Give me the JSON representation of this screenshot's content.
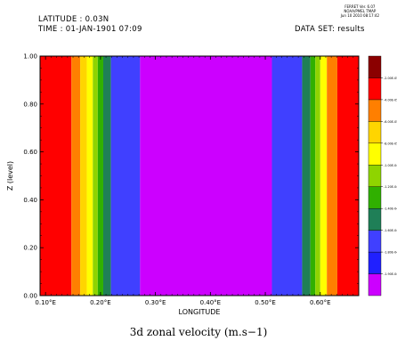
{
  "header": {
    "latitude": "LATITUDE : 0.03N",
    "time": "TIME : 01-JAN-1901 07:09",
    "dataset": "DATA SET: results"
  },
  "ferret": {
    "line1": "FERRET Ver. 6.07",
    "line2": "NOAA/PMEL TMAP",
    "line3": "Jun 10 2010 08:17:42"
  },
  "caption": "3d zonal velocity (m.s−1)",
  "chart_data": {
    "type": "heatmap",
    "xlabel": "LONGITUDE",
    "ylabel": "Z (level)",
    "xlim": [
      0.09,
      0.67
    ],
    "ylim": [
      0.0,
      1.0
    ],
    "x_ticks": [
      0.1,
      0.2,
      0.3,
      0.4,
      0.5,
      0.6
    ],
    "x_tick_labels": [
      "0.10°E",
      "0.20°E",
      "0.30°E",
      "0.40°E",
      "0.50°E",
      "0.60°E"
    ],
    "y_ticks": [
      0.0,
      0.2,
      0.4,
      0.6,
      0.8,
      1.0
    ],
    "y_tick_labels": [
      "0.00",
      "0.20",
      "0.40",
      "0.60",
      "0.80",
      "1.00"
    ],
    "bands": [
      {
        "x0": 0.09,
        "x1": 0.147,
        "color": "#ff0000"
      },
      {
        "x0": 0.147,
        "x1": 0.163,
        "color": "#ff7f00"
      },
      {
        "x0": 0.163,
        "x1": 0.175,
        "color": "#ffd500"
      },
      {
        "x0": 0.175,
        "x1": 0.186,
        "color": "#ffff00"
      },
      {
        "x0": 0.186,
        "x1": 0.195,
        "color": "#8fd400"
      },
      {
        "x0": 0.195,
        "x1": 0.205,
        "color": "#30b000"
      },
      {
        "x0": 0.205,
        "x1": 0.219,
        "color": "#1f7f57"
      },
      {
        "x0": 0.219,
        "x1": 0.272,
        "color": "#4040ff"
      },
      {
        "x0": 0.272,
        "x1": 0.512,
        "color": "#cc00ff"
      },
      {
        "x0": 0.512,
        "x1": 0.567,
        "color": "#4040ff"
      },
      {
        "x0": 0.567,
        "x1": 0.582,
        "color": "#1f7f57"
      },
      {
        "x0": 0.582,
        "x1": 0.591,
        "color": "#30b000"
      },
      {
        "x0": 0.591,
        "x1": 0.6,
        "color": "#8fd400"
      },
      {
        "x0": 0.6,
        "x1": 0.612,
        "color": "#ffff00"
      },
      {
        "x0": 0.612,
        "x1": 0.631,
        "color": "#ff7f00"
      },
      {
        "x0": 0.631,
        "x1": 0.67,
        "color": "#ff0000"
      }
    ],
    "colorbar": {
      "colors": [
        "#cc00ff",
        "#2020ff",
        "#4040ff",
        "#1f7f57",
        "#30b000",
        "#8fd400",
        "#ffff00",
        "#ffd500",
        "#ff7f00",
        "#ff0000",
        "#8b0000"
      ],
      "labels": [
        "-1.90E-04",
        "-1.80E-04",
        "-1.60E-04",
        "-1.40E-04",
        "-1.20E-04",
        "-1.00E-04",
        "-8.00E-05",
        "-6.00E-05",
        "-4.00E-05",
        "-2.00E-05"
      ]
    }
  }
}
